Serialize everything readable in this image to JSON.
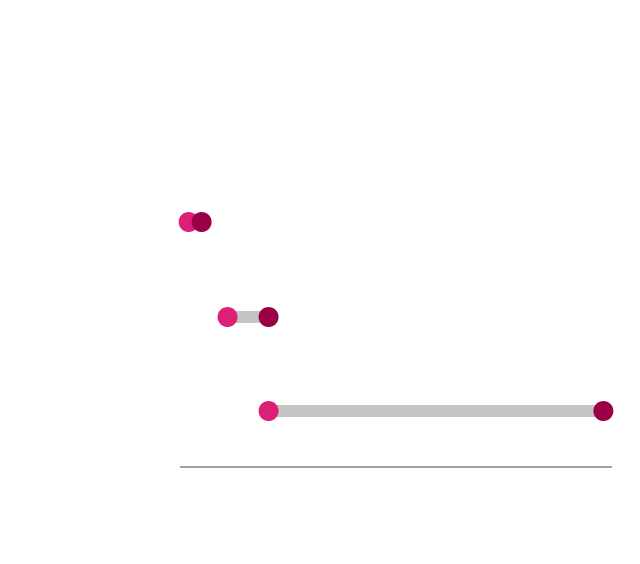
{
  "chart_data": {
    "type": "dumbbell",
    "title": "",
    "xlabel": "",
    "ylabel": "",
    "grid": false,
    "legend": "none",
    "xlim": [
      0,
      100
    ],
    "rows": [
      {
        "start": 2,
        "end": 5
      },
      {
        "start": 11,
        "end": 20.5
      },
      {
        "start": 20.5,
        "end": 98
      }
    ],
    "colors": {
      "start": "#dd2077",
      "end": "#9a0047",
      "connector": "#c4c4c4",
      "axis": "#a0a0a0"
    }
  }
}
